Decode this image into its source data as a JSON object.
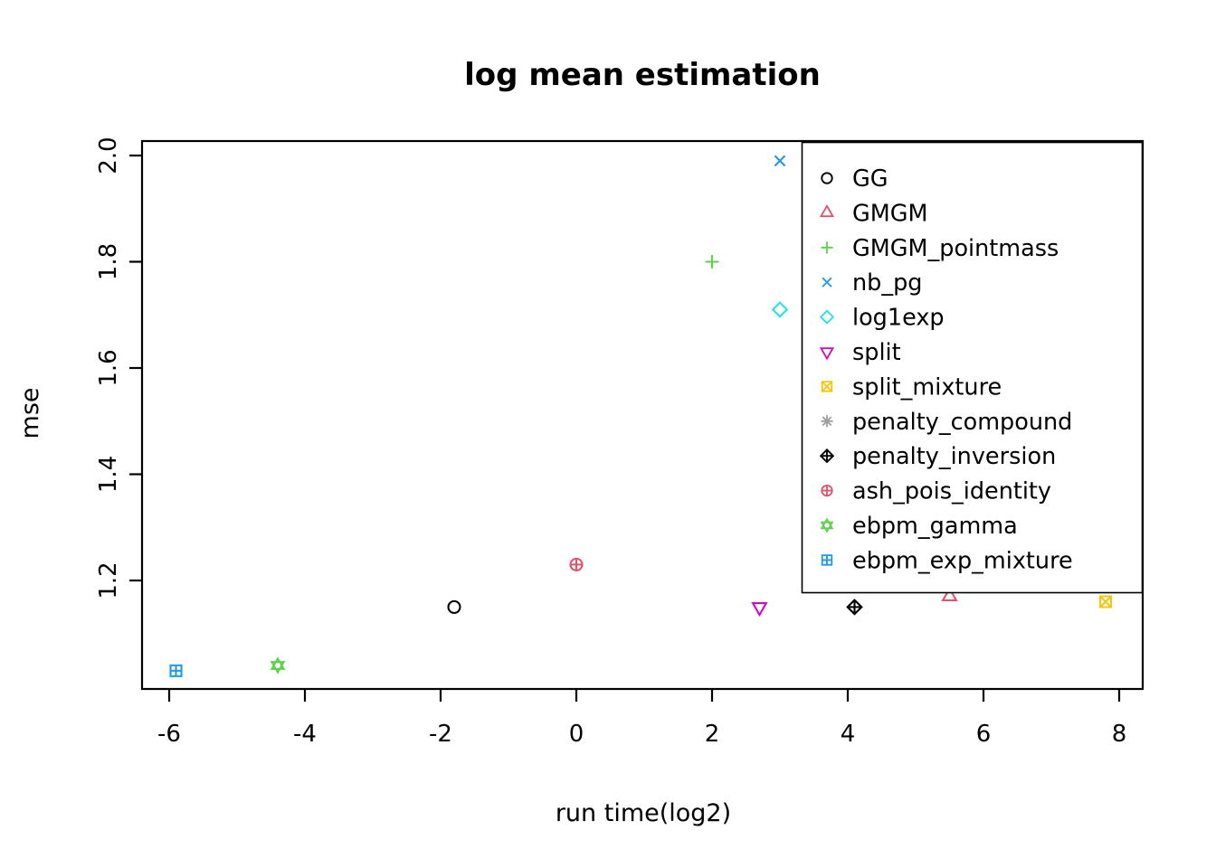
{
  "chart_data": {
    "type": "scatter",
    "title": "log mean estimation",
    "xlabel": "run time(log2)",
    "ylabel": "mse",
    "xlim": [
      -6.4,
      8.35
    ],
    "ylim": [
      1.0,
      2.03
    ],
    "x_ticks": [
      -6,
      -4,
      -2,
      0,
      2,
      4,
      6,
      8
    ],
    "x_tick_labels": [
      "-6",
      "-4",
      "-2",
      "0",
      "2",
      "4",
      "6",
      "8"
    ],
    "y_ticks": [
      1.2,
      1.4,
      1.6,
      1.8,
      2.0
    ],
    "y_tick_labels": [
      "1.2",
      "1.4",
      "1.6",
      "1.8",
      "2.0"
    ],
    "grid": false,
    "legend_position": "top-right-inside",
    "axis_color": "#000000",
    "background_color": "#ffffff",
    "series": [
      {
        "name": "GG",
        "pch": 1,
        "symbol": "open-circle",
        "color": "#000000",
        "points": [
          {
            "x": -1.8,
            "y": 1.15
          }
        ],
        "visible": true
      },
      {
        "name": "GMGM",
        "pch": 2,
        "symbol": "open-triangle-up",
        "color": "#DF536B",
        "points": [
          {
            "x": 5.5,
            "y": 1.17
          }
        ],
        "visible": true
      },
      {
        "name": "GMGM_pointmass",
        "pch": 3,
        "symbol": "plus",
        "color": "#61D04F",
        "points": [
          {
            "x": 2.0,
            "y": 1.8
          }
        ],
        "visible": true
      },
      {
        "name": "nb_pg",
        "pch": 4,
        "symbol": "x-cross",
        "color": "#2297E6",
        "points": [
          {
            "x": 3.0,
            "y": 1.99
          }
        ],
        "visible": true
      },
      {
        "name": "log1exp",
        "pch": 5,
        "symbol": "open-diamond",
        "color": "#28E2E5",
        "points": [
          {
            "x": 3.0,
            "y": 1.71
          }
        ],
        "visible": true
      },
      {
        "name": "split",
        "pch": 6,
        "symbol": "open-triangle-down",
        "color": "#CD0BBC",
        "points": [
          {
            "x": 2.7,
            "y": 1.15
          }
        ],
        "visible": true
      },
      {
        "name": "split_mixture",
        "pch": 7,
        "symbol": "square-with-x",
        "color": "#F5C710",
        "points": [
          {
            "x": 7.8,
            "y": 1.16
          }
        ],
        "visible": true
      },
      {
        "name": "penalty_compound",
        "pch": 8,
        "symbol": "asterisk",
        "color": "#9E9E9E",
        "points": [],
        "visible": false
      },
      {
        "name": "penalty_inversion",
        "pch": 9,
        "symbol": "diamond-with-plus",
        "color": "#000000",
        "points": [
          {
            "x": 4.1,
            "y": 1.15
          }
        ],
        "visible": true
      },
      {
        "name": "ash_pois_identity",
        "pch": 10,
        "symbol": "circle-with-plus",
        "color": "#DF536B",
        "points": [
          {
            "x": 0.0,
            "y": 1.23
          }
        ],
        "visible": true
      },
      {
        "name": "ebpm_gamma",
        "pch": 11,
        "symbol": "hexagram",
        "color": "#61D04F",
        "points": [
          {
            "x": -4.4,
            "y": 1.04
          }
        ],
        "visible": true
      },
      {
        "name": "ebpm_exp_mixture",
        "pch": 12,
        "symbol": "square-with-plus",
        "color": "#2297E6",
        "points": [
          {
            "x": -5.9,
            "y": 1.03
          }
        ],
        "visible": true
      }
    ]
  }
}
